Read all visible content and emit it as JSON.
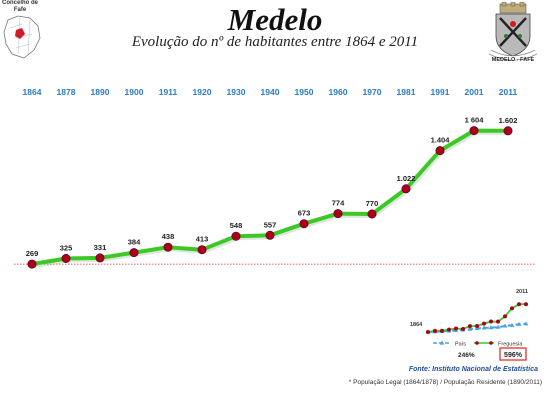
{
  "header": {
    "title": "Medelo",
    "subtitle": "Evolução do nº de habitantes entre 1864 e 2011",
    "map_label_line1": "Concelho de",
    "map_label_line2": "Fafe",
    "crest_label": "MEDELO - FAFE"
  },
  "chart_data": [
    {
      "type": "line",
      "title": "Evolução do nº de habitantes entre 1864 e 2011",
      "categories": [
        "1864",
        "1878",
        "1890",
        "1900",
        "1911",
        "1920",
        "1930",
        "1940",
        "1950",
        "1960",
        "1970",
        "1981",
        "1991",
        "2001",
        "2011"
      ],
      "value_labels": [
        "269",
        "325",
        "331",
        "384",
        "438",
        "413",
        "548",
        "557",
        "673",
        "774",
        "770",
        "1.022",
        "1.404",
        "1 604",
        "1.602"
      ],
      "series": [
        {
          "values": [
            269,
            325,
            331,
            384,
            438,
            413,
            548,
            557,
            673,
            774,
            770,
            1022,
            1404,
            1604,
            1602
          ]
        }
      ],
      "ylim": [
        0,
        1700
      ],
      "reference_line": 269,
      "colors": {
        "line": "#3ec828",
        "marker": "#a8001e",
        "reference": "#e03030",
        "year_labels": "#2a7cc7"
      }
    },
    {
      "type": "line",
      "start_label": "1864",
      "end_label": "2011",
      "series": [
        {
          "name": "País",
          "values": [
            1,
            1.05,
            1.1,
            1.2,
            1.3,
            1.38,
            1.5,
            1.62,
            1.74,
            1.78,
            1.86,
            2.09,
            2.2,
            2.38,
            2.46
          ]
        },
        {
          "name": "Freguesia",
          "values": [
            1,
            1.21,
            1.23,
            1.43,
            1.63,
            1.54,
            2.04,
            2.07,
            2.5,
            2.88,
            2.86,
            3.8,
            5.22,
            5.96,
            5.96
          ]
        }
      ],
      "growth_labels": {
        "country": "246%",
        "parish": "596%"
      },
      "colors": {
        "country": "#4aa3df",
        "parish_line": "#3ec828",
        "parish_marker": "#a8001e",
        "highlight_box": "#e02020"
      }
    }
  ],
  "footer": {
    "source": "Fonte: Instituto Nacional de Estatística",
    "note": "* População Legal (1864/1878) /  População Residente (1890/2011)"
  }
}
